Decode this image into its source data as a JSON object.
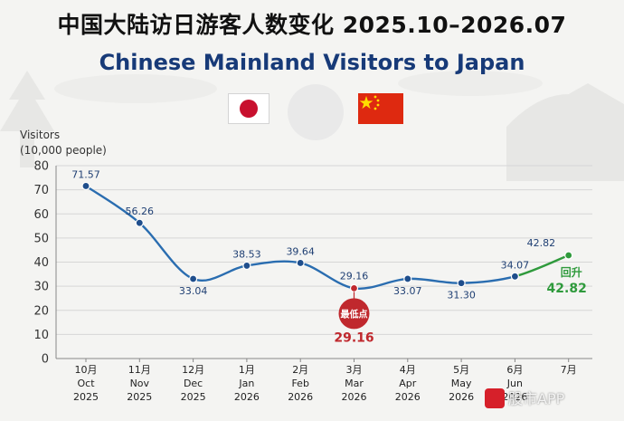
{
  "header": {
    "title_cn": "中国大陆访日游客人数变化 2025.10–2026.07",
    "title_en": "Chinese Mainland Visitors to Japan"
  },
  "flags": {
    "left": "japan-flag",
    "right": "china-flag"
  },
  "colors": {
    "line": "#2a6db0",
    "point": "#1f4e8c",
    "low": "#c0282d",
    "rebound": "#2f9a3c",
    "title_en": "#173a78"
  },
  "watermark": {
    "text": "股市APP"
  },
  "chart_data": {
    "type": "line",
    "ylabel_line1": "Visitors",
    "ylabel_line2": "(10,000 people)",
    "ylim": [
      0,
      80
    ],
    "yticks": [
      0,
      10,
      20,
      30,
      40,
      50,
      60,
      70,
      80
    ],
    "grid": true,
    "categories": [
      {
        "cn": "10月",
        "en": "Oct",
        "year": "2025"
      },
      {
        "cn": "11月",
        "en": "Nov",
        "year": "2025"
      },
      {
        "cn": "12月",
        "en": "Dec",
        "year": "2025"
      },
      {
        "cn": "1月",
        "en": "Jan",
        "year": "2026"
      },
      {
        "cn": "2月",
        "en": "Feb",
        "year": "2026"
      },
      {
        "cn": "3月",
        "en": "Mar",
        "year": "2026"
      },
      {
        "cn": "4月",
        "en": "Apr",
        "year": "2026"
      },
      {
        "cn": "5月",
        "en": "May",
        "year": "2026"
      },
      {
        "cn": "6月",
        "en": "Jun",
        "year": "2026"
      },
      {
        "cn": "7月",
        "en": "",
        "year": ""
      }
    ],
    "values": [
      71.57,
      56.26,
      33.04,
      38.53,
      39.64,
      29.16,
      33.07,
      31.3,
      34.07,
      42.82
    ],
    "labels": [
      "71.57",
      "56.26",
      "33.04",
      "38.53",
      "39.64",
      "29.16",
      "33.07",
      "31.30",
      "34.07",
      "42.82"
    ],
    "annotations": {
      "low": {
        "index": 5,
        "badge": "最低点",
        "value": "29.16"
      },
      "rebound": {
        "index": 9,
        "label": "回升",
        "value": "42.82"
      }
    }
  }
}
